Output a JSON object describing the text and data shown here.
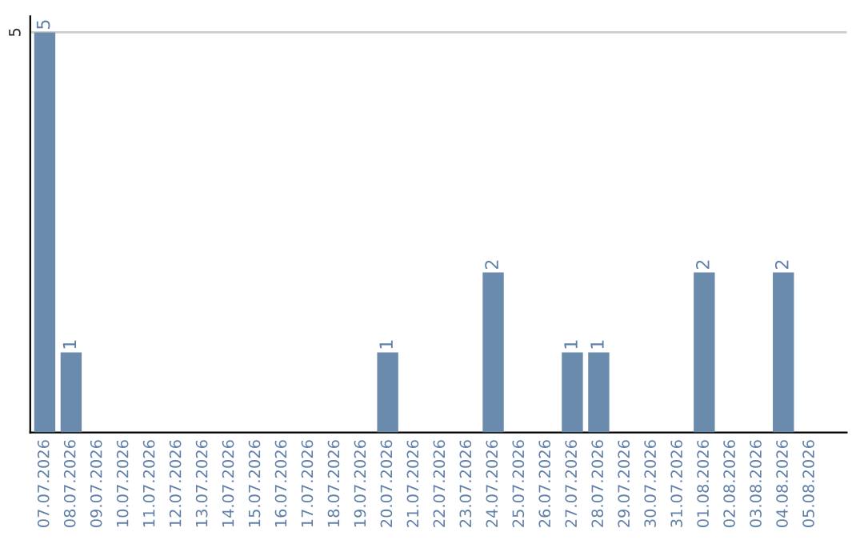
{
  "chart_data": {
    "type": "bar",
    "categories": [
      "07.07.2026",
      "08.07.2026",
      "09.07.2026",
      "10.07.2026",
      "11.07.2026",
      "12.07.2026",
      "13.07.2026",
      "14.07.2026",
      "15.07.2026",
      "16.07.2026",
      "17.07.2026",
      "18.07.2026",
      "19.07.2026",
      "20.07.2026",
      "21.07.2026",
      "22.07.2026",
      "23.07.2026",
      "24.07.2026",
      "25.07.2026",
      "26.07.2026",
      "27.07.2026",
      "28.07.2026",
      "29.07.2026",
      "30.07.2026",
      "31.07.2026",
      "01.08.2026",
      "02.08.2026",
      "03.08.2026",
      "04.08.2026",
      "05.08.2026"
    ],
    "values": [
      5,
      1,
      0,
      0,
      0,
      0,
      0,
      0,
      0,
      0,
      0,
      0,
      0,
      1,
      0,
      0,
      0,
      2,
      0,
      0,
      1,
      1,
      0,
      0,
      0,
      2,
      0,
      0,
      2,
      0
    ],
    "value_labels": [
      "5",
      "1",
      null,
      null,
      null,
      null,
      null,
      null,
      null,
      null,
      null,
      null,
      null,
      "1",
      null,
      null,
      null,
      "2",
      null,
      null,
      "1",
      "1",
      null,
      null,
      null,
      "2",
      null,
      null,
      "2",
      null
    ],
    "color": "#6a8bab",
    "ylim": [
      0,
      5.2
    ],
    "yticks": [
      5
    ],
    "grid": "y",
    "legend": false
  }
}
